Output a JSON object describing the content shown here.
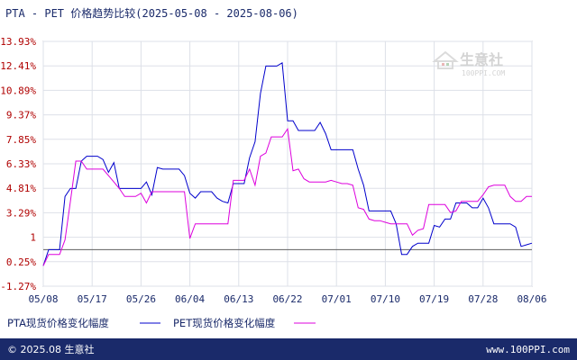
{
  "chart_data": {
    "type": "line",
    "title": "PTA - PET 价格趋势比较(2025-05-08 - 2025-08-06)",
    "y_tick_labels": [
      "13.93%",
      "12.41%",
      "10.89%",
      "9.37%",
      "7.85%",
      "6.33%",
      "4.81%",
      "3.29%",
      "1",
      "0.25%",
      "-1.27%"
    ],
    "ylim": [
      -1.27,
      13.93
    ],
    "baseline": 1.0,
    "x_tick_labels": [
      "05/08",
      "05/17",
      "05/26",
      "06/04",
      "06/13",
      "06/22",
      "07/01",
      "07/10",
      "07/19",
      "07/28",
      "08/06"
    ],
    "x_range_days": [
      0,
      90
    ],
    "grid": true,
    "legend_position": "bottom-left",
    "series": [
      {
        "name": "PTA现货价格变化幅度",
        "color": "#0000cc",
        "x": [
          0,
          1,
          3,
          4,
          5,
          6,
          7,
          8,
          9,
          10,
          11,
          12,
          13,
          14,
          15,
          16,
          17,
          18,
          19,
          20,
          21,
          22,
          23,
          24,
          25,
          26,
          27,
          28,
          29,
          30,
          31,
          32,
          33,
          34,
          35,
          36,
          37,
          38,
          39,
          40,
          41,
          42,
          43,
          44,
          45,
          46,
          47,
          48,
          49,
          50,
          51,
          52,
          53,
          54,
          55,
          56,
          57,
          58,
          59,
          60,
          61,
          62,
          63,
          64,
          65,
          66,
          67,
          68,
          69,
          70,
          71,
          72,
          73,
          74,
          75,
          76,
          77,
          78,
          79,
          80,
          81,
          82,
          83,
          84,
          85,
          86,
          87,
          88,
          89,
          90
        ],
        "y": [
          0.0,
          1.0,
          1.0,
          4.3,
          4.8,
          4.8,
          6.5,
          6.8,
          6.8,
          6.8,
          6.6,
          5.8,
          6.4,
          4.8,
          4.8,
          4.8,
          4.8,
          4.8,
          5.2,
          4.4,
          6.1,
          6.0,
          6.0,
          6.0,
          6.0,
          5.6,
          4.5,
          4.2,
          4.6,
          4.6,
          4.6,
          4.2,
          4.0,
          3.9,
          5.1,
          5.1,
          5.1,
          6.7,
          7.7,
          10.7,
          12.4,
          12.4,
          12.4,
          12.6,
          9.0,
          9.0,
          8.4,
          8.4,
          8.4,
          8.4,
          8.9,
          8.2,
          7.2,
          7.2,
          7.2,
          7.2,
          7.2,
          6.0,
          5.0,
          3.4,
          3.4,
          3.4,
          3.4,
          3.4,
          2.6,
          0.7,
          0.7,
          1.2,
          1.4,
          1.4,
          1.4,
          2.5,
          2.4,
          2.9,
          2.9,
          3.9,
          3.9,
          3.9,
          3.6,
          3.6,
          4.2,
          3.6,
          2.6,
          2.6,
          2.6,
          2.6,
          2.4,
          1.2,
          1.3,
          1.4
        ]
      },
      {
        "name": "PET现货价格变化幅度",
        "color": "#dd00dd",
        "x": [
          0,
          1,
          3,
          4,
          5,
          6,
          7,
          8,
          9,
          10,
          11,
          12,
          13,
          14,
          15,
          16,
          17,
          18,
          19,
          20,
          21,
          22,
          23,
          24,
          25,
          26,
          27,
          28,
          29,
          30,
          31,
          32,
          33,
          34,
          35,
          36,
          37,
          38,
          39,
          40,
          41,
          42,
          43,
          44,
          45,
          46,
          47,
          48,
          49,
          50,
          51,
          52,
          53,
          54,
          55,
          56,
          57,
          58,
          59,
          60,
          61,
          62,
          63,
          64,
          65,
          66,
          67,
          68,
          69,
          70,
          71,
          72,
          73,
          74,
          75,
          76,
          77,
          78,
          79,
          80,
          81,
          82,
          83,
          84,
          85,
          86,
          87,
          88,
          89,
          90
        ],
        "y": [
          0.0,
          0.7,
          0.7,
          1.6,
          4.0,
          6.5,
          6.5,
          6.0,
          6.0,
          6.0,
          6.0,
          5.6,
          5.2,
          4.8,
          4.3,
          4.3,
          4.3,
          4.5,
          3.9,
          4.6,
          4.6,
          4.6,
          4.6,
          4.6,
          4.6,
          4.6,
          1.7,
          2.6,
          2.6,
          2.6,
          2.6,
          2.6,
          2.6,
          2.6,
          5.3,
          5.3,
          5.3,
          6.0,
          5.0,
          6.8,
          7.0,
          8.0,
          8.0,
          8.0,
          8.5,
          5.9,
          6.0,
          5.4,
          5.2,
          5.2,
          5.2,
          5.2,
          5.3,
          5.2,
          5.1,
          5.1,
          5.0,
          3.6,
          3.5,
          2.9,
          2.8,
          2.8,
          2.7,
          2.6,
          2.6,
          2.6,
          2.6,
          1.9,
          2.2,
          2.3,
          3.8,
          3.8,
          3.8,
          3.8,
          3.3,
          3.4,
          4.0,
          4.0,
          4.0,
          4.0,
          4.4,
          4.9,
          5.0,
          5.0,
          5.0,
          4.3,
          4.0,
          4.0,
          4.3,
          4.3
        ]
      }
    ]
  },
  "watermark": {
    "name": "生意社",
    "url": "100PPI.COM"
  },
  "footer": {
    "copyright": "© 2025.08 生意社",
    "website": "www.100PPI.com"
  }
}
